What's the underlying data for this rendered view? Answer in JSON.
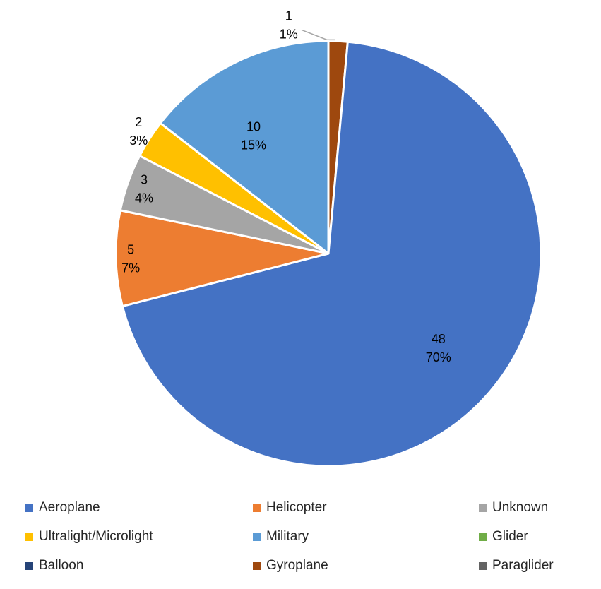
{
  "chart_data": {
    "type": "pie",
    "categories": [
      "Aeroplane",
      "Helicopter",
      "Unknown",
      "Ultralight/Microlight",
      "Military",
      "Glider",
      "Balloon",
      "Gyroplane",
      "Paraglider"
    ],
    "values": [
      48,
      5,
      3,
      2,
      10,
      0,
      0,
      1,
      0
    ],
    "percent_labels": [
      "70%",
      "7%",
      "4%",
      "3%",
      "15%",
      "",
      "",
      "1%",
      ""
    ],
    "value_labels": [
      "48",
      "5",
      "3",
      "2",
      "10",
      "",
      "",
      "1",
      ""
    ],
    "colors": [
      "#4472C4",
      "#ED7D31",
      "#A5A5A5",
      "#FFC000",
      "#5B9BD5",
      "#70AD47",
      "#264478",
      "#9E480E",
      "#636363"
    ],
    "slice_order": [
      "Gyroplane",
      "Aeroplane",
      "Helicopter",
      "Unknown",
      "Ultralight/Microlight",
      "Military"
    ],
    "legend_placement": "bottom",
    "title": ""
  },
  "legend": [
    {
      "label": "Aeroplane",
      "color": "#4472C4"
    },
    {
      "label": "Helicopter",
      "color": "#ED7D31"
    },
    {
      "label": "Unknown",
      "color": "#A5A5A5"
    },
    {
      "label": "Ultralight/Microlight",
      "color": "#FFC000"
    },
    {
      "label": "Military",
      "color": "#5B9BD5"
    },
    {
      "label": "Glider",
      "color": "#70AD47"
    },
    {
      "label": "Balloon",
      "color": "#264478"
    },
    {
      "label": "Gyroplane",
      "color": "#9E480E"
    },
    {
      "label": "Paraglider",
      "color": "#636363"
    }
  ]
}
